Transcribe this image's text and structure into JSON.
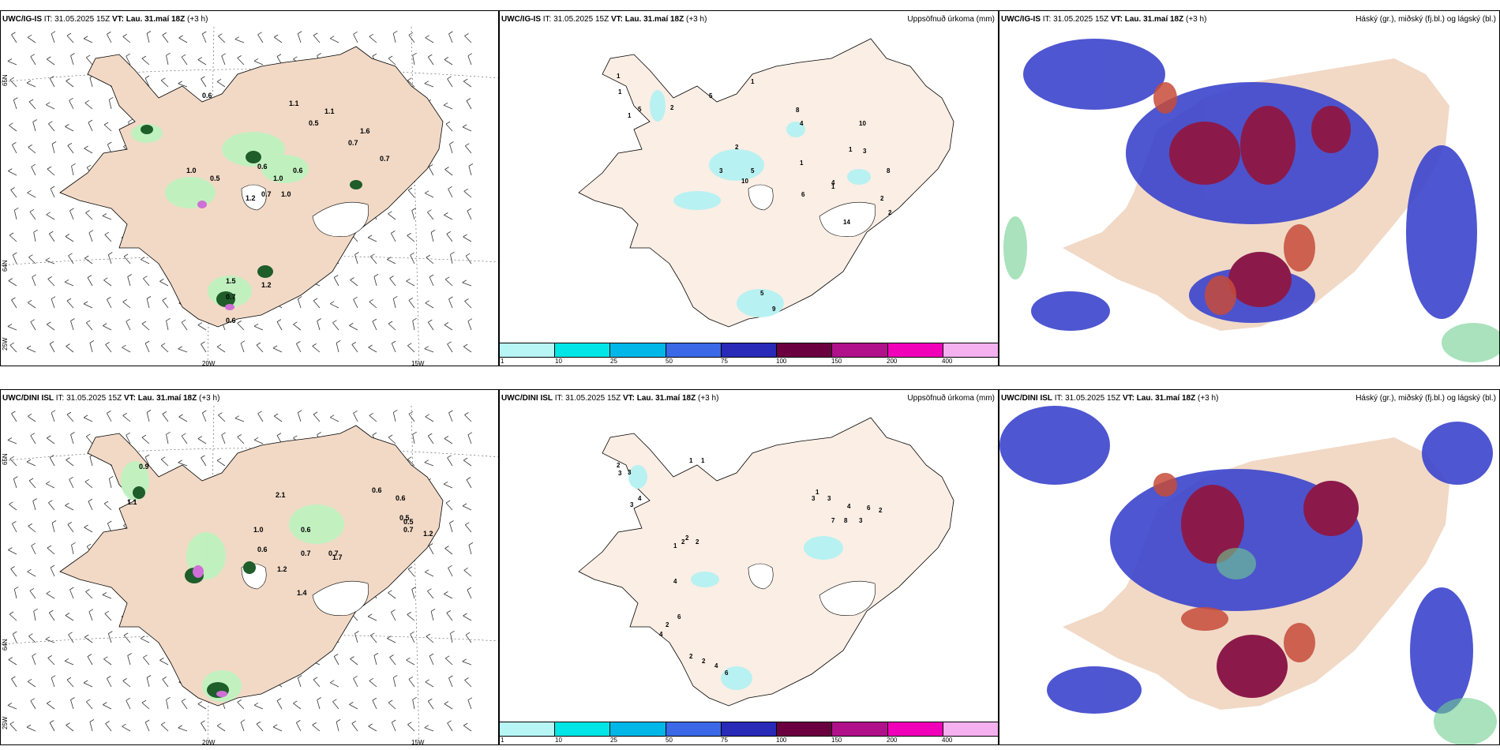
{
  "colors": {
    "land": "#f1d9c6",
    "land_light": "#fbeee4",
    "green": "#bff2bf",
    "dark_green": "#1f5d2a",
    "purple": "#cf6fd7",
    "cyan_light": "#b8f1f2",
    "blue": "#3b44cc",
    "maroon": "#8b1a4a",
    "red": "#c74b3a"
  },
  "panels": {
    "p1": {
      "model": "UWC/IG-IS",
      "it_label": "IT:",
      "it_value": "31.05.2025 15Z",
      "vt_label": "VT:",
      "vt_value": "Lau. 31.maí 18Z",
      "lead": "(+3 h)",
      "lat_labels": [
        "65N",
        "64N",
        "25W"
      ],
      "lon_labels": [
        "20W",
        "15W"
      ],
      "values": [
        "0.6",
        "1.1",
        "0.5",
        "1.1",
        "1.6",
        "0.7",
        "0.7",
        "1.0",
        "0.5",
        "0.6",
        "1.0",
        "0.7",
        "1.0",
        "0.6",
        "1.2",
        "1.5",
        "0.7",
        "1.2",
        "0.6"
      ]
    },
    "p2": {
      "model": "UWC/IG-IS",
      "it_label": "IT:",
      "it_value": "31.05.2025 15Z",
      "vt_label": "VT:",
      "vt_value": "Lau. 31.maí 18Z",
      "lead": "(+3 h)",
      "title": "Uppsöfnuð úrkoma (mm)",
      "values": [
        "1",
        "1",
        "5",
        "1",
        "2",
        "5",
        "1",
        "8",
        "4",
        "10",
        "2",
        "3",
        "5",
        "10",
        "1",
        "6",
        "4",
        "14",
        "3",
        "8",
        "5",
        "9",
        "1",
        "2",
        "2",
        "1"
      ]
    },
    "p3": {
      "model": "UWC/IG-IS",
      "it_label": "IT:",
      "it_value": "31.05.2025 15Z",
      "vt_label": "VT:",
      "vt_value": "Lau. 31.maí 18Z",
      "lead": "(+3 h)",
      "title": "Háský (gr.), miðský (fj.bl.) og lágský (bl.)"
    },
    "p4": {
      "model": "UWC/DINI ISL",
      "it_label": "IT:",
      "it_value": "31.05.2025 15Z",
      "vt_label": "VT:",
      "vt_value": "Lau. 31.maí 18Z",
      "lead": "(+3 h)",
      "lat_labels": [
        "65N",
        "64N",
        "25W"
      ],
      "lon_labels": [
        "20W",
        "15W"
      ],
      "values": [
        "0.9",
        "1.1",
        "1.0",
        "0.6",
        "0.7",
        "0.6",
        "2.1",
        "0.6",
        "0.6",
        "0.5",
        "0.7",
        "1.2",
        "1.4",
        "1.7",
        "0.5",
        "0.7",
        "1.2"
      ]
    },
    "p5": {
      "model": "UWC/DINI ISL",
      "it_label": "IT:",
      "it_value": "31.05.2025 15Z",
      "vt_label": "VT:",
      "vt_value": "Lau. 31.maí 18Z",
      "lead": "(+3 h)",
      "title": "Uppsöfnuð úrkoma (mm)",
      "values": [
        "2",
        "3",
        "3",
        "4",
        "3",
        "1",
        "1",
        "2",
        "2",
        "1",
        "3",
        "3",
        "7",
        "8",
        "3",
        "4",
        "6",
        "2",
        "1",
        "2",
        "4",
        "6",
        "2",
        "4",
        "2",
        "2",
        "4",
        "6"
      ]
    },
    "p6": {
      "model": "UWC/DINI ISL",
      "it_label": "IT:",
      "it_value": "31.05.2025 15Z",
      "vt_label": "VT:",
      "vt_value": "Lau. 31.maí 18Z",
      "lead": "(+3 h)",
      "title": "Háský (gr.), miðský (fj.bl.) og lágský (bl.)"
    }
  },
  "colorbar": {
    "ticks": [
      "1",
      "10",
      "25",
      "50",
      "75",
      "100",
      "150",
      "200",
      "400"
    ],
    "colors": [
      "#b8f5f5",
      "#00e5e5",
      "#00b7e8",
      "#3a68e6",
      "#2a2ab8",
      "#6a0040",
      "#b0108a",
      "#f000b8",
      "#f5b0f0"
    ]
  }
}
